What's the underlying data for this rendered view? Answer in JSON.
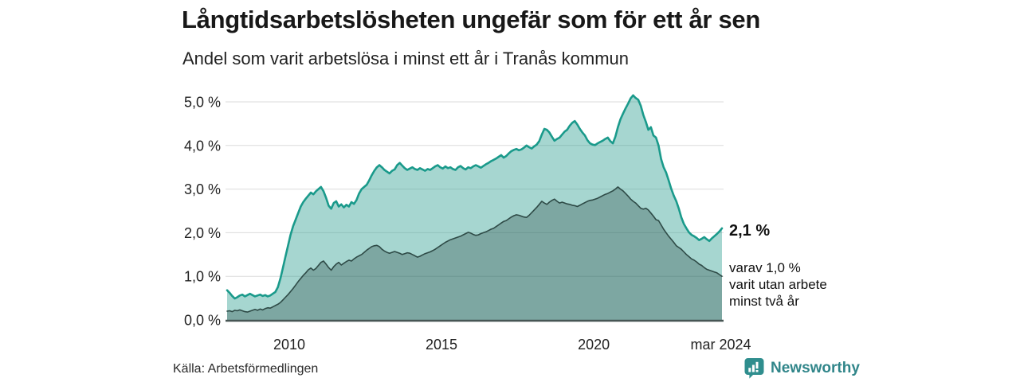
{
  "chart_data": {
    "type": "area",
    "title": "Långtidsarbetslösheten ungefär som för ett år sen",
    "subtitle": "Andel som varit arbetslösa i minst ett år i Tranås kommun",
    "unit": "%",
    "freq": "monthly",
    "start": "2007-12",
    "end": "2024-03",
    "ylim": [
      0,
      5.3
    ],
    "grid": "horizontal",
    "legend": "none",
    "y_ticks": [
      {
        "label": "0,0 %",
        "value": 0
      },
      {
        "label": "1,0 %",
        "value": 1
      },
      {
        "label": "2,0 %",
        "value": 2
      },
      {
        "label": "3,0 %",
        "value": 3
      },
      {
        "label": "4,0 %",
        "value": 4
      },
      {
        "label": "5,0 %",
        "value": 5
      }
    ],
    "x_ticks": [
      {
        "label": "2010",
        "year": 2010.0
      },
      {
        "label": "2015",
        "year": 2015.0
      },
      {
        "label": "2020",
        "year": 2020.0
      },
      {
        "label": "mar 2024",
        "year": 2024.17
      }
    ],
    "annotations": {
      "value_label": "2,1 %",
      "note_lines": [
        "varav 1,0 %",
        "varit utan arbete",
        "minst två år"
      ]
    },
    "colors": {
      "line_total": "#1a9a8b",
      "fill_total": "rgba(42,157,143,0.42)",
      "line_two_years": "#2e4a46",
      "fill_two_years": "rgba(31,61,57,0.30)",
      "gridline": "#dbdbdb",
      "baseline": "#475654"
    },
    "series": [
      {
        "name": "Arbetslösa minst ett år (andel, %)",
        "latest_value": 2.1,
        "values": [
          0.68,
          0.62,
          0.55,
          0.49,
          0.52,
          0.56,
          0.58,
          0.54,
          0.57,
          0.6,
          0.57,
          0.54,
          0.56,
          0.58,
          0.55,
          0.57,
          0.54,
          0.56,
          0.6,
          0.64,
          0.75,
          0.95,
          1.2,
          1.45,
          1.7,
          1.95,
          2.15,
          2.3,
          2.45,
          2.6,
          2.7,
          2.78,
          2.85,
          2.92,
          2.88,
          2.95,
          3.0,
          3.05,
          2.95,
          2.8,
          2.62,
          2.55,
          2.68,
          2.72,
          2.6,
          2.65,
          2.58,
          2.64,
          2.6,
          2.7,
          2.66,
          2.75,
          2.9,
          3.0,
          3.05,
          3.1,
          3.2,
          3.32,
          3.42,
          3.5,
          3.55,
          3.5,
          3.44,
          3.4,
          3.36,
          3.42,
          3.45,
          3.55,
          3.6,
          3.54,
          3.48,
          3.44,
          3.47,
          3.5,
          3.46,
          3.44,
          3.48,
          3.45,
          3.42,
          3.46,
          3.44,
          3.48,
          3.52,
          3.55,
          3.5,
          3.47,
          3.52,
          3.48,
          3.5,
          3.46,
          3.44,
          3.5,
          3.53,
          3.48,
          3.45,
          3.5,
          3.48,
          3.52,
          3.55,
          3.52,
          3.49,
          3.53,
          3.57,
          3.6,
          3.64,
          3.67,
          3.7,
          3.74,
          3.78,
          3.72,
          3.76,
          3.82,
          3.87,
          3.9,
          3.92,
          3.89,
          3.91,
          3.95,
          4.0,
          3.96,
          3.93,
          3.98,
          4.02,
          4.1,
          4.25,
          4.38,
          4.36,
          4.3,
          4.2,
          4.11,
          4.15,
          4.18,
          4.25,
          4.32,
          4.36,
          4.45,
          4.52,
          4.56,
          4.48,
          4.38,
          4.3,
          4.23,
          4.12,
          4.05,
          4.02,
          4.01,
          4.05,
          4.08,
          4.11,
          4.15,
          4.18,
          4.1,
          4.05,
          4.2,
          4.42,
          4.6,
          4.73,
          4.85,
          4.96,
          5.08,
          5.15,
          5.09,
          5.05,
          4.91,
          4.7,
          4.54,
          4.36,
          4.42,
          4.23,
          4.18,
          4.0,
          3.69,
          3.5,
          3.38,
          3.2,
          3.01,
          2.85,
          2.72,
          2.55,
          2.35,
          2.2,
          2.1,
          2.01,
          1.95,
          1.92,
          1.88,
          1.83,
          1.86,
          1.9,
          1.85,
          1.81,
          1.87,
          1.92,
          1.97,
          2.03,
          2.1
        ]
      },
      {
        "name": "varav arbetslösa minst två år (andel, %)",
        "latest_value": 1.0,
        "values": [
          0.2,
          0.21,
          0.19,
          0.22,
          0.21,
          0.23,
          0.21,
          0.19,
          0.18,
          0.2,
          0.22,
          0.24,
          0.22,
          0.25,
          0.23,
          0.26,
          0.28,
          0.27,
          0.3,
          0.33,
          0.36,
          0.4,
          0.46,
          0.52,
          0.58,
          0.65,
          0.72,
          0.8,
          0.88,
          0.95,
          1.02,
          1.08,
          1.15,
          1.19,
          1.14,
          1.18,
          1.25,
          1.32,
          1.35,
          1.28,
          1.2,
          1.14,
          1.22,
          1.28,
          1.32,
          1.26,
          1.3,
          1.34,
          1.37,
          1.35,
          1.4,
          1.44,
          1.47,
          1.5,
          1.55,
          1.6,
          1.64,
          1.68,
          1.7,
          1.71,
          1.68,
          1.62,
          1.58,
          1.55,
          1.53,
          1.55,
          1.57,
          1.55,
          1.53,
          1.5,
          1.52,
          1.54,
          1.53,
          1.5,
          1.47,
          1.44,
          1.46,
          1.49,
          1.52,
          1.54,
          1.56,
          1.59,
          1.62,
          1.66,
          1.7,
          1.74,
          1.78,
          1.81,
          1.84,
          1.86,
          1.88,
          1.9,
          1.92,
          1.95,
          1.98,
          2.01,
          1.99,
          1.96,
          1.94,
          1.95,
          1.98,
          2.0,
          2.02,
          2.05,
          2.08,
          2.1,
          2.14,
          2.18,
          2.22,
          2.26,
          2.28,
          2.32,
          2.36,
          2.39,
          2.41,
          2.4,
          2.38,
          2.36,
          2.35,
          2.4,
          2.46,
          2.52,
          2.58,
          2.65,
          2.72,
          2.68,
          2.65,
          2.7,
          2.74,
          2.77,
          2.72,
          2.68,
          2.7,
          2.68,
          2.66,
          2.65,
          2.63,
          2.62,
          2.6,
          2.63,
          2.66,
          2.69,
          2.72,
          2.74,
          2.75,
          2.77,
          2.79,
          2.82,
          2.85,
          2.88,
          2.9,
          2.93,
          2.96,
          3.0,
          3.05,
          3.0,
          2.96,
          2.9,
          2.84,
          2.77,
          2.72,
          2.68,
          2.62,
          2.56,
          2.54,
          2.56,
          2.52,
          2.45,
          2.38,
          2.3,
          2.28,
          2.18,
          2.08,
          2.0,
          1.92,
          1.85,
          1.78,
          1.7,
          1.66,
          1.62,
          1.56,
          1.5,
          1.45,
          1.4,
          1.37,
          1.33,
          1.28,
          1.25,
          1.2,
          1.16,
          1.14,
          1.12,
          1.1,
          1.08,
          1.04,
          1.0
        ]
      }
    ]
  },
  "source": {
    "label": "Källa: Arbetsförmedlingen"
  },
  "branding": {
    "name": "Newsworthy",
    "color": "#31868a"
  }
}
